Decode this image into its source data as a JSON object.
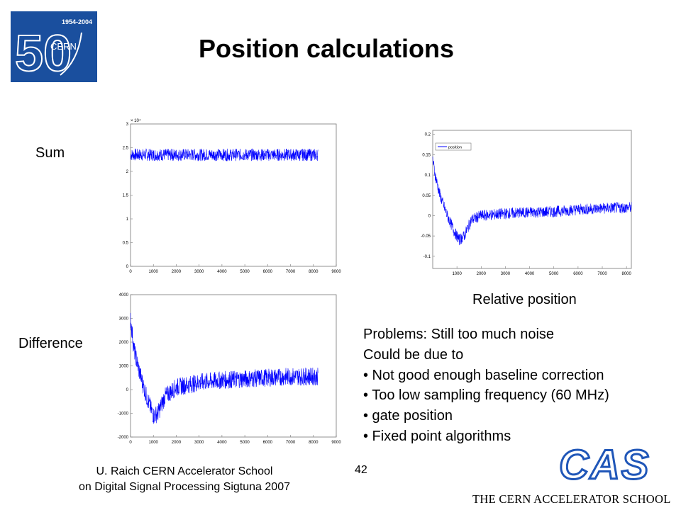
{
  "slide": {
    "title": "Position calculations",
    "labels": {
      "sum": "Sum",
      "difference": "Difference",
      "relative_position": "Relative position"
    },
    "problems": [
      "Problems: Still too much noise",
      "Could be due to",
      "• Not good enough baseline correction",
      "• Too low sampling frequency (60 MHz)",
      "• gate position",
      "• Fixed point algorithms"
    ],
    "footer": {
      "author_line1": "U. Raich  CERN Accelerator School",
      "author_line2": "on Digital Signal Processing  Sigtuna 2007",
      "page_number": "42",
      "cas_text": "CAS",
      "school_name": "THE CERN ACCELERATOR SCHOOL"
    },
    "logo": {
      "years": "1954-2004",
      "number": "50",
      "org": "CERN"
    }
  },
  "colors": {
    "trace": "#0000ff",
    "logo_bg": "#1a4f9e",
    "cas_blue": "#1f56b8"
  },
  "chart_data": [
    {
      "id": "sum",
      "type": "line",
      "x_ticks": [
        0,
        1000,
        2000,
        3000,
        4000,
        5000,
        6000,
        7000,
        8000,
        9000
      ],
      "xlim": [
        0,
        9000
      ],
      "y_ticks": [
        0,
        0.5,
        1,
        1.5,
        2,
        2.5,
        3
      ],
      "ylim": [
        0,
        3
      ],
      "y_multiplier": "× 10⁴",
      "series": [
        {
          "x": [
            0,
            8200
          ],
          "y": [
            2.35,
            2.35
          ],
          "noise": 0.13
        }
      ]
    },
    {
      "id": "difference",
      "type": "line",
      "x_ticks": [
        0,
        1000,
        2000,
        3000,
        4000,
        5000,
        6000,
        7000,
        8000,
        9000
      ],
      "xlim": [
        0,
        9000
      ],
      "y_ticks": [
        -2000,
        -1000,
        0,
        1000,
        2000,
        3000,
        4000
      ],
      "ylim": [
        -2000,
        4000
      ],
      "series": [
        {
          "x": [
            0,
            150,
            400,
            700,
            1000,
            1200,
            1500,
            2000,
            3000,
            4000,
            5000,
            6000,
            7000,
            8200
          ],
          "y": [
            3000,
            1700,
            700,
            -300,
            -1100,
            -1000,
            -300,
            100,
            300,
            400,
            450,
            500,
            550,
            550
          ],
          "noise": 380
        }
      ]
    },
    {
      "id": "relative_position",
      "type": "line",
      "x_ticks": [
        1000,
        2000,
        3000,
        4000,
        5000,
        6000,
        7000,
        8000
      ],
      "xlim": [
        0,
        8200
      ],
      "y_ticks": [
        -0.1,
        -0.05,
        0,
        0.05,
        0.1,
        0.15,
        0.2
      ],
      "ylim": [
        -0.13,
        0.21
      ],
      "legend": "position",
      "legend_position": "top-left",
      "series": [
        {
          "x": [
            0,
            100,
            300,
            600,
            900,
            1100,
            1300,
            1600,
            2000,
            3000,
            4000,
            5000,
            6000,
            7000,
            8200
          ],
          "y": [
            0.14,
            0.1,
            0.05,
            0.0,
            -0.04,
            -0.06,
            -0.05,
            -0.01,
            0.0,
            0.005,
            0.008,
            0.01,
            0.015,
            0.018,
            0.02
          ],
          "noise": 0.014
        }
      ]
    }
  ]
}
